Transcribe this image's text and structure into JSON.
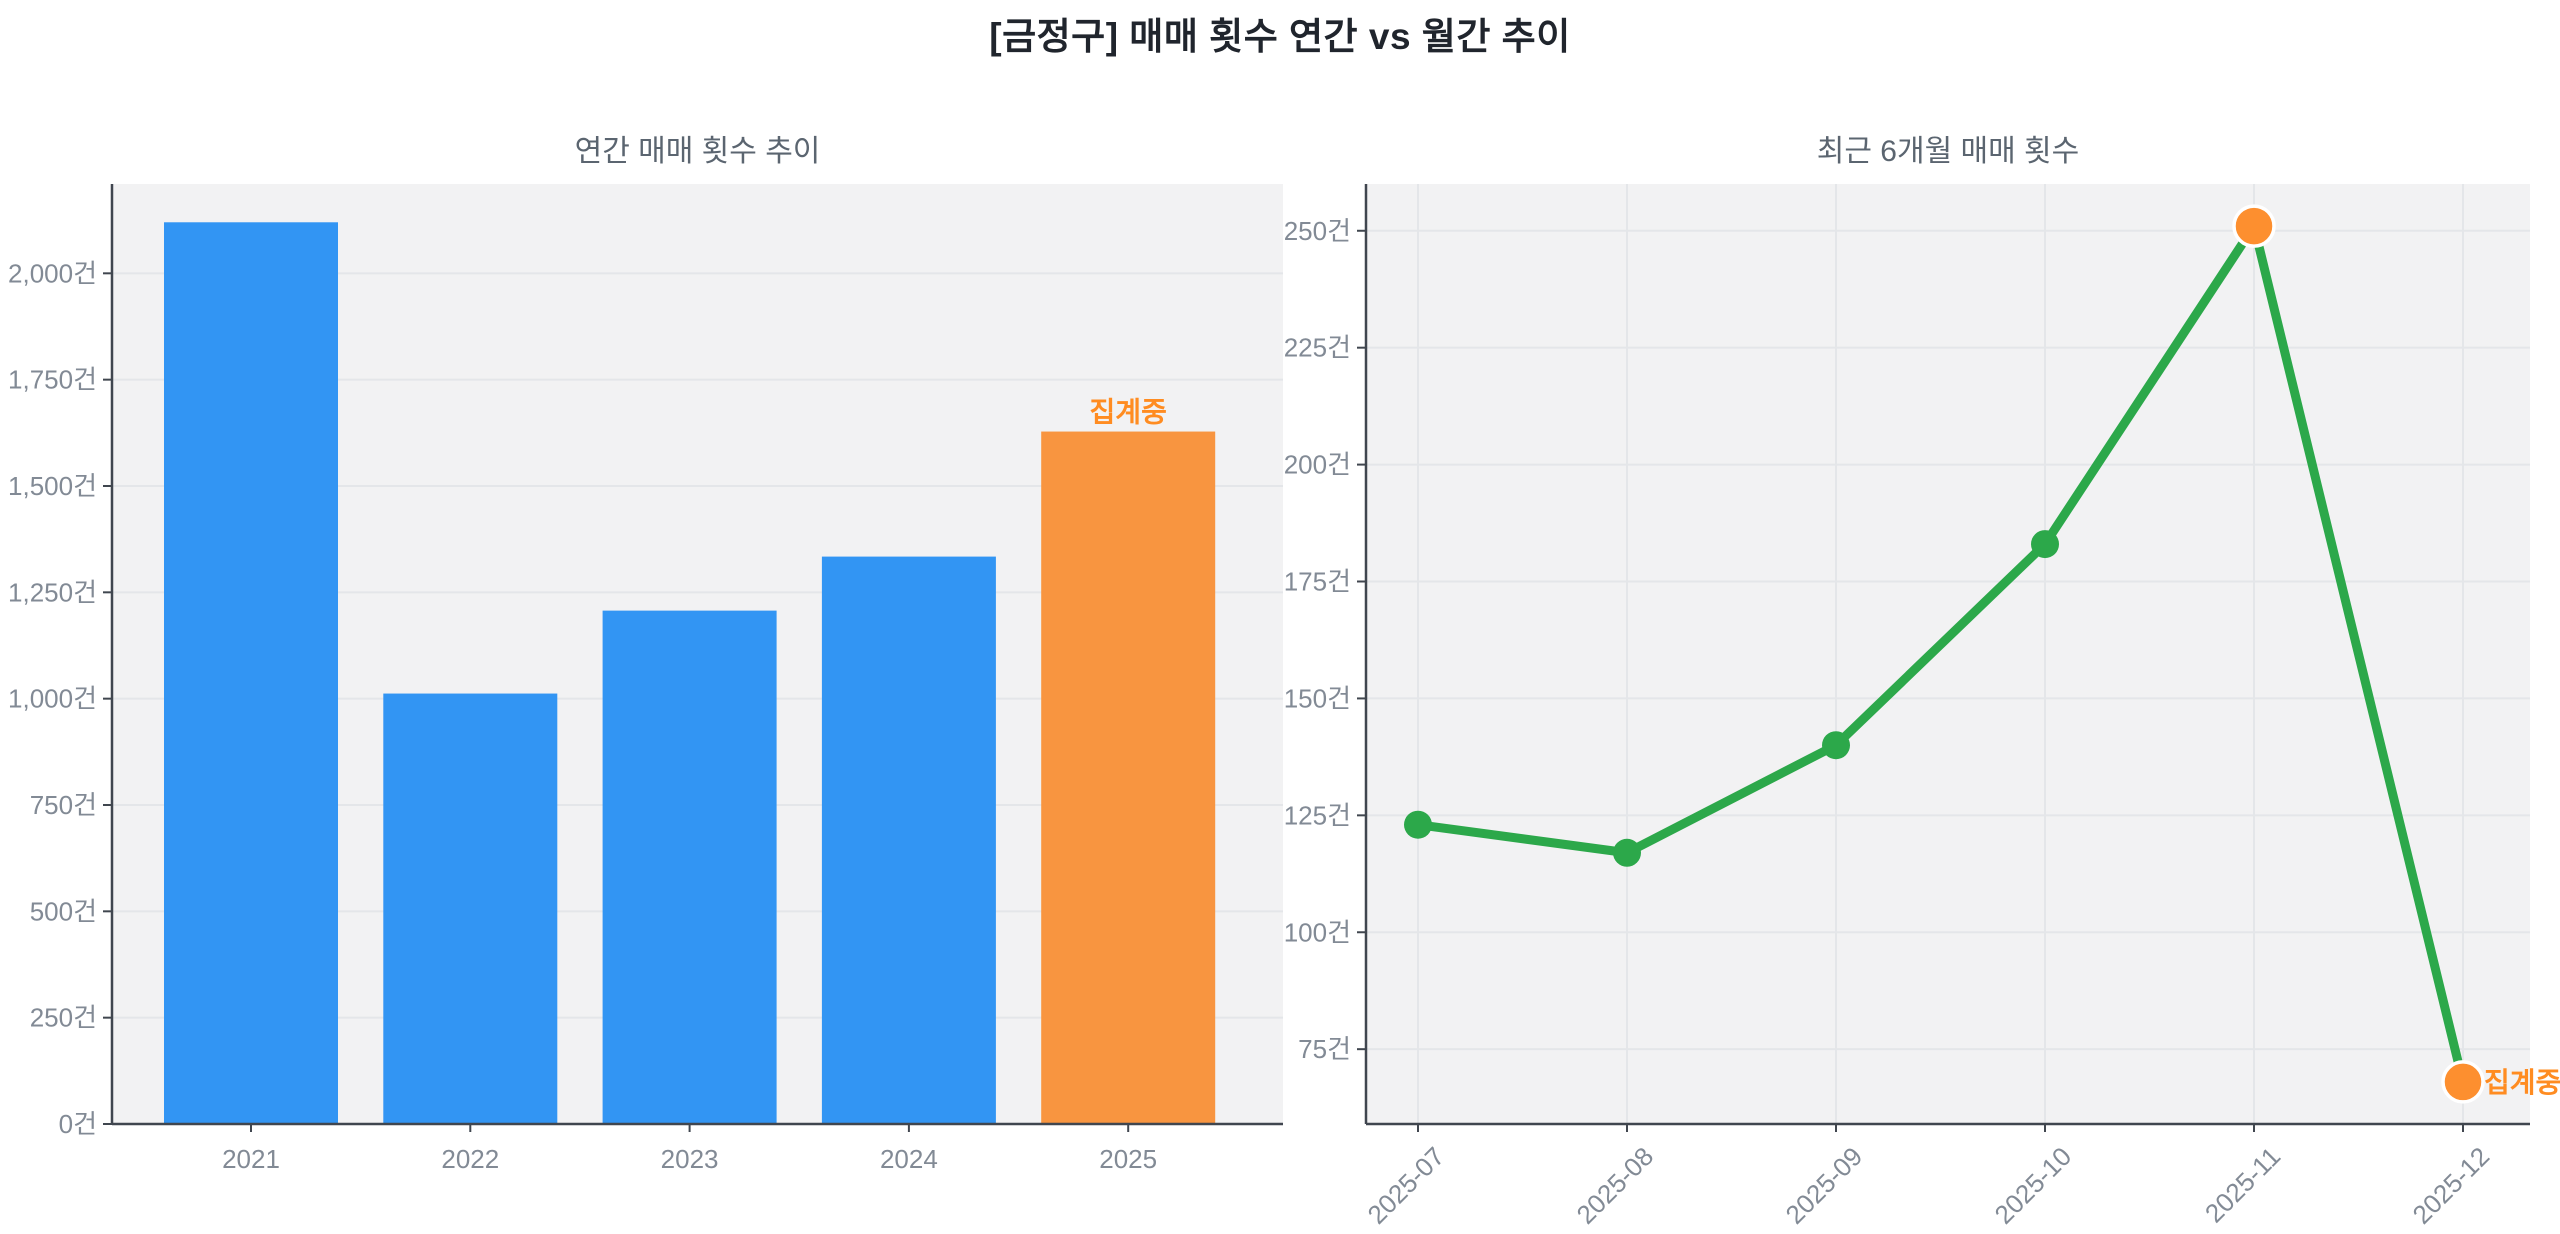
{
  "page": {
    "title": "[금정구] 매매 횟수 연간 vs 월간 추이"
  },
  "colors": {
    "bar_blue": "#3295f3",
    "bar_orange": "#f89540",
    "line_green": "#2ca84a",
    "marker_orange": "#fd8f2f",
    "annotation_orange": "#ff8c21",
    "plot_bg": "#f2f2f3",
    "grid": "#e4e6e9",
    "spine": "#40464f",
    "tick_label": "#828a95",
    "chart_title": "#5b6570",
    "main_title": "#20252d",
    "page_bg": "#ffffff",
    "marker_edge_white": "#ffffff"
  },
  "chart_data": [
    {
      "type": "bar",
      "title": "연간 매매 횟수 추이",
      "categories": [
        "2021",
        "2022",
        "2023",
        "2024",
        "2025"
      ],
      "values": [
        2120,
        1012,
        1207,
        1334,
        1628
      ],
      "unit": "건",
      "ylim": [
        0,
        2210
      ],
      "yticks": [
        {
          "value": 0,
          "label": "0건"
        },
        {
          "value": 250,
          "label": "250건"
        },
        {
          "value": 500,
          "label": "500건"
        },
        {
          "value": 750,
          "label": "750건"
        },
        {
          "value": 1000,
          "label": "1,000건"
        },
        {
          "value": 1250,
          "label": "1,250건"
        },
        {
          "value": 1500,
          "label": "1,500건"
        },
        {
          "value": 1750,
          "label": "1,750건"
        },
        {
          "value": 2000,
          "label": "2,000건"
        }
      ],
      "highlight_index": 4,
      "annotation": {
        "text": "집계중",
        "target": "2025"
      },
      "grid": true,
      "legend": false
    },
    {
      "type": "line",
      "title": "최근 6개월 매매 횟수",
      "x": [
        "2025-07",
        "2025-08",
        "2025-09",
        "2025-10",
        "2025-11",
        "2025-12"
      ],
      "values": [
        123,
        117,
        140,
        183,
        251,
        68
      ],
      "unit": "건",
      "ylim": [
        59,
        260
      ],
      "yticks": [
        {
          "value": 75,
          "label": "75건"
        },
        {
          "value": 100,
          "label": "100건"
        },
        {
          "value": 125,
          "label": "125건"
        },
        {
          "value": 150,
          "label": "150건"
        },
        {
          "value": 175,
          "label": "175건"
        },
        {
          "value": 200,
          "label": "200건"
        },
        {
          "value": 225,
          "label": "225건"
        },
        {
          "value": 250,
          "label": "250건"
        }
      ],
      "highlight_indices": [
        4,
        5
      ],
      "annotation": {
        "text": "집계중",
        "target": "2025-12"
      },
      "x_label_rotation": -45,
      "grid": true,
      "legend": false
    }
  ]
}
